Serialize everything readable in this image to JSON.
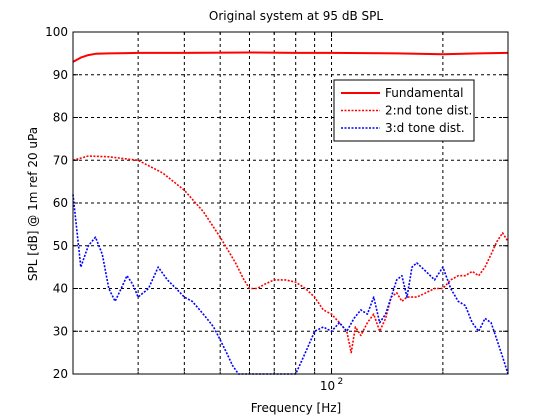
{
  "chart_data": {
    "type": "line",
    "title": "Original system at 95 dB SPL",
    "xlabel": "Frequency [Hz]",
    "ylabel": "SPL [dB] @ 1m ref 20 uPa",
    "xscale": "log",
    "xlim": [
      20,
      300
    ],
    "ylim": [
      20,
      100
    ],
    "yticks": [
      20,
      30,
      40,
      50,
      60,
      70,
      80,
      90,
      100
    ],
    "xtick_label": "10",
    "xtick_label_exp": "2",
    "grid": true,
    "legend_position": "top-right",
    "series": [
      {
        "name": "Fundamental",
        "color": "#ff0000",
        "style": "solid",
        "points": [
          [
            20,
            93
          ],
          [
            21,
            94
          ],
          [
            22,
            94.6
          ],
          [
            23,
            94.9
          ],
          [
            25,
            95.0
          ],
          [
            30,
            95.1
          ],
          [
            40,
            95.1
          ],
          [
            60,
            95.2
          ],
          [
            80,
            95.1
          ],
          [
            100,
            95.1
          ],
          [
            150,
            95.0
          ],
          [
            200,
            94.8
          ],
          [
            250,
            95.0
          ],
          [
            300,
            95.1
          ]
        ]
      },
      {
        "name": "2:nd tone dist.",
        "color": "#ff0000",
        "style": "dotted",
        "points": [
          [
            20,
            70
          ],
          [
            22,
            71
          ],
          [
            25,
            70.8
          ],
          [
            30,
            70
          ],
          [
            35,
            67
          ],
          [
            40,
            63
          ],
          [
            45,
            58
          ],
          [
            50,
            52
          ],
          [
            55,
            46
          ],
          [
            58,
            42
          ],
          [
            60,
            40
          ],
          [
            63,
            40
          ],
          [
            66,
            41
          ],
          [
            70,
            42
          ],
          [
            75,
            42
          ],
          [
            80,
            41.5
          ],
          [
            85,
            40
          ],
          [
            90,
            38
          ],
          [
            95,
            35
          ],
          [
            100,
            34
          ],
          [
            105,
            32
          ],
          [
            110,
            30
          ],
          [
            113,
            25
          ],
          [
            116,
            31
          ],
          [
            120,
            29
          ],
          [
            125,
            32
          ],
          [
            130,
            34
          ],
          [
            135,
            30
          ],
          [
            140,
            33
          ],
          [
            145,
            38
          ],
          [
            150,
            39
          ],
          [
            155,
            37
          ],
          [
            160,
            38
          ],
          [
            170,
            38
          ],
          [
            180,
            39
          ],
          [
            190,
            40
          ],
          [
            200,
            40
          ],
          [
            210,
            42
          ],
          [
            220,
            43
          ],
          [
            230,
            43
          ],
          [
            240,
            44
          ],
          [
            250,
            43
          ],
          [
            260,
            45
          ],
          [
            270,
            48
          ],
          [
            280,
            51
          ],
          [
            290,
            53
          ],
          [
            300,
            51
          ]
        ]
      },
      {
        "name": "3:d tone dist.",
        "color": "#0000ff",
        "style": "dotted",
        "points": [
          [
            20,
            62
          ],
          [
            21,
            45
          ],
          [
            22,
            50
          ],
          [
            23,
            52
          ],
          [
            24,
            48
          ],
          [
            25,
            40
          ],
          [
            26,
            37
          ],
          [
            27,
            40
          ],
          [
            28,
            43
          ],
          [
            29,
            41
          ],
          [
            30,
            38
          ],
          [
            32,
            40
          ],
          [
            34,
            45
          ],
          [
            36,
            42
          ],
          [
            38,
            40
          ],
          [
            40,
            38
          ],
          [
            42,
            37
          ],
          [
            44,
            35
          ],
          [
            46,
            33
          ],
          [
            48,
            31
          ],
          [
            50,
            28
          ],
          [
            52,
            25
          ],
          [
            54,
            22
          ],
          [
            56,
            20
          ],
          [
            62,
            20
          ],
          [
            70,
            20
          ],
          [
            80,
            20
          ],
          [
            85,
            25
          ],
          [
            88,
            28
          ],
          [
            90,
            30
          ],
          [
            95,
            31
          ],
          [
            100,
            30
          ],
          [
            105,
            32
          ],
          [
            110,
            30
          ],
          [
            115,
            33
          ],
          [
            120,
            35
          ],
          [
            125,
            34
          ],
          [
            130,
            38
          ],
          [
            135,
            32
          ],
          [
            140,
            34
          ],
          [
            145,
            38
          ],
          [
            150,
            42
          ],
          [
            155,
            43
          ],
          [
            160,
            38
          ],
          [
            165,
            45
          ],
          [
            170,
            46
          ],
          [
            180,
            44
          ],
          [
            190,
            42
          ],
          [
            200,
            45
          ],
          [
            210,
            40
          ],
          [
            220,
            37
          ],
          [
            230,
            36
          ],
          [
            240,
            32
          ],
          [
            250,
            30
          ],
          [
            260,
            33
          ],
          [
            270,
            32
          ],
          [
            280,
            28
          ],
          [
            290,
            24
          ],
          [
            300,
            20
          ]
        ]
      }
    ]
  }
}
